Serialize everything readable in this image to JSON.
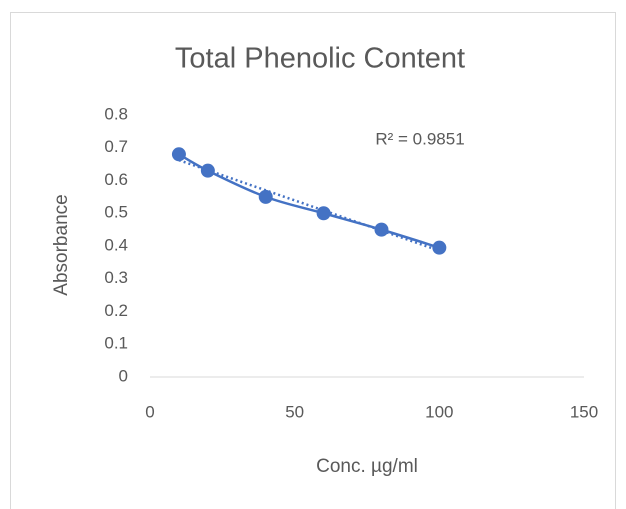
{
  "chart_data": {
    "type": "scatter",
    "title": "Total Phenolic Content",
    "x_label": "Conc. µg/ml",
    "y_label": "Absorbance",
    "series": [
      {
        "name": "Absorbance",
        "color": "#4472c4",
        "x": [
          10,
          20,
          40,
          60,
          80,
          100
        ],
        "values": [
          0.68,
          0.63,
          0.55,
          0.5,
          0.45,
          0.395
        ]
      }
    ],
    "smooth_line": true,
    "trendline": "linear",
    "annotation": "R² = 0.9851",
    "xlim": [
      0,
      150
    ],
    "xticks": [
      0,
      50,
      100,
      150
    ],
    "ylim": [
      0,
      0.8
    ],
    "yticks": [
      0,
      0.1,
      0.2,
      0.3,
      0.4,
      0.5,
      0.6,
      0.7,
      0.8
    ],
    "grid": false
  }
}
